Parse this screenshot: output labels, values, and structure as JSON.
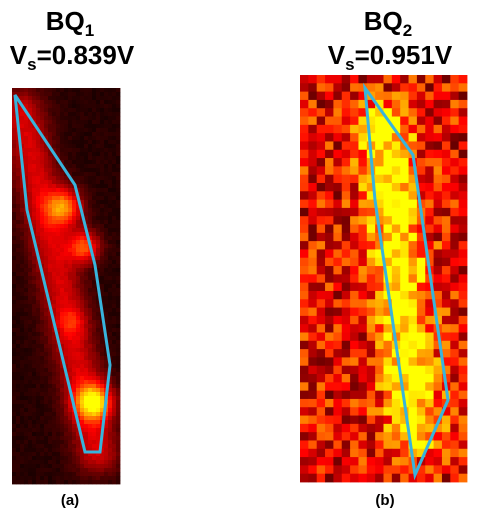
{
  "panels": [
    {
      "title": "BQ",
      "title_sub": "1",
      "voltage_symbol": "V",
      "voltage_sub": "s",
      "voltage_value": "=0.839V",
      "label": "(a)"
    },
    {
      "title": "BQ",
      "title_sub": "2",
      "voltage_symbol": "V",
      "voltage_sub": "s",
      "voltage_value": "=0.951V",
      "label": "(b)"
    }
  ]
}
